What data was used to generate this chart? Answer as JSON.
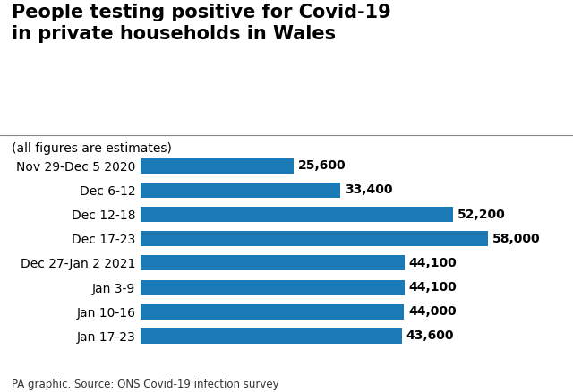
{
  "title": "People testing positive for Covid-19\nin private households in Wales",
  "subtitle": "(all figures are estimates)",
  "footer": "PA graphic. Source: ONS Covid-19 infection survey",
  "categories": [
    "Nov 29-Dec 5 2020",
    "Dec 6-12",
    "Dec 12-18",
    "Dec 17-23",
    "Dec 27-Jan 2 2021",
    "Jan 3-9",
    "Jan 10-16",
    "Jan 17-23"
  ],
  "values": [
    25600,
    33400,
    52200,
    58000,
    44100,
    44100,
    44000,
    43600
  ],
  "labels": [
    "25,600",
    "33,400",
    "52,200",
    "58,000",
    "44,100",
    "44,100",
    "44,000",
    "43,600"
  ],
  "bar_color": "#1a7ab5",
  "background_color": "#ffffff",
  "title_fontsize": 15,
  "subtitle_fontsize": 10,
  "label_fontsize": 10,
  "tick_fontsize": 10,
  "footer_fontsize": 8.5,
  "xlim": [
    0,
    65000
  ]
}
